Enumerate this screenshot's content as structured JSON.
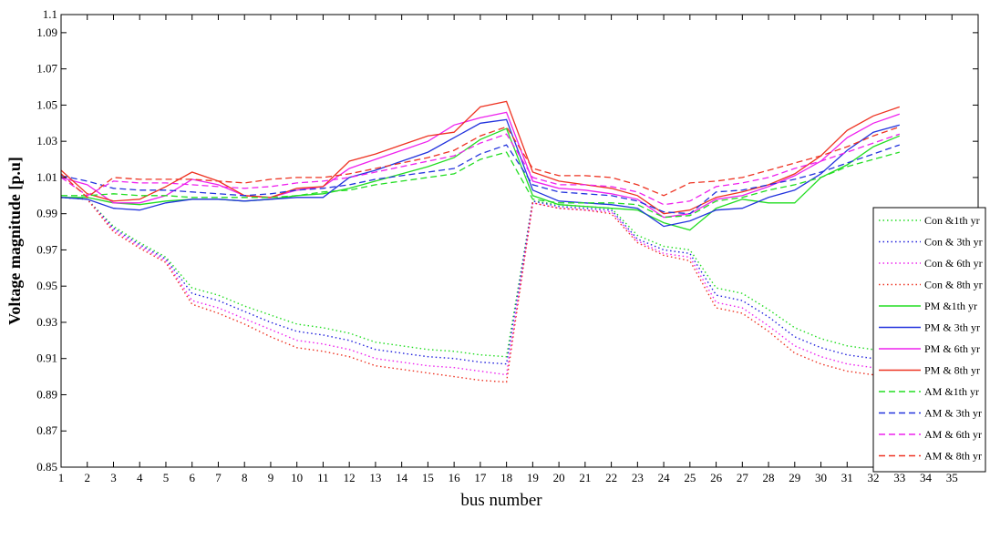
{
  "chart_data": {
    "type": "line",
    "title": "",
    "xlabel": "bus number",
    "ylabel": "Voltage magnitude [p.u]",
    "xlim": [
      1,
      36
    ],
    "ylim": [
      0.85,
      1.1
    ],
    "x_ticks": [
      "1",
      "2",
      "3",
      "4",
      "5",
      "6",
      "7",
      "8",
      "9",
      "10",
      "11",
      "12",
      "13",
      "14",
      "15",
      "16",
      "17",
      "18",
      "19",
      "20",
      "21",
      "22",
      "23",
      "24",
      "25",
      "26",
      "27",
      "28",
      "29",
      "30",
      "31",
      "32",
      "33",
      "34",
      "35"
    ],
    "y_ticks": [
      "0.85",
      "0.87",
      "0.89",
      "0.91",
      "0.93",
      "0.95",
      "0.97",
      "0.99",
      "1.01",
      "1.03",
      "1.05",
      "1.07",
      "1.09",
      "1.1"
    ],
    "grid": false,
    "legend_position": "bottom-right",
    "x": [
      1,
      2,
      3,
      4,
      5,
      6,
      7,
      8,
      9,
      10,
      11,
      12,
      13,
      14,
      15,
      16,
      17,
      18,
      19,
      20,
      21,
      22,
      23,
      24,
      25,
      26,
      27,
      28,
      29,
      30,
      31,
      32,
      33
    ],
    "series": [
      {
        "name": "Con &1th yr",
        "color": "#22dd22",
        "style": "dotted",
        "values": [
          0.999,
          0.998,
          0.983,
          0.974,
          0.966,
          0.949,
          0.945,
          0.939,
          0.934,
          0.929,
          0.927,
          0.924,
          0.919,
          0.917,
          0.915,
          0.914,
          0.912,
          0.911,
          0.997,
          0.995,
          0.994,
          0.993,
          0.978,
          0.972,
          0.97,
          0.949,
          0.946,
          0.937,
          0.927,
          0.921,
          0.917,
          0.915,
          0.915
        ]
      },
      {
        "name": "Con & 3th yr",
        "color": "#2222dd",
        "style": "dotted",
        "values": [
          0.999,
          0.998,
          0.982,
          0.973,
          0.965,
          0.946,
          0.942,
          0.936,
          0.93,
          0.925,
          0.923,
          0.92,
          0.915,
          0.913,
          0.911,
          0.91,
          0.908,
          0.907,
          0.997,
          0.994,
          0.993,
          0.992,
          0.976,
          0.97,
          0.968,
          0.945,
          0.942,
          0.933,
          0.922,
          0.916,
          0.912,
          0.91,
          0.91
        ]
      },
      {
        "name": "Con & 6th yr",
        "color": "#ee22ee",
        "style": "dotted",
        "values": [
          0.999,
          0.998,
          0.981,
          0.972,
          0.964,
          0.942,
          0.938,
          0.932,
          0.926,
          0.92,
          0.918,
          0.915,
          0.91,
          0.908,
          0.906,
          0.905,
          0.903,
          0.901,
          0.996,
          0.993,
          0.992,
          0.991,
          0.975,
          0.968,
          0.966,
          0.941,
          0.938,
          0.928,
          0.917,
          0.911,
          0.907,
          0.905,
          0.905
        ]
      },
      {
        "name": "Con & 8th yr",
        "color": "#ee3322",
        "style": "dotted",
        "values": [
          0.999,
          0.998,
          0.98,
          0.971,
          0.963,
          0.94,
          0.935,
          0.929,
          0.922,
          0.916,
          0.914,
          0.911,
          0.906,
          0.904,
          0.902,
          0.9,
          0.898,
          0.897,
          0.996,
          0.993,
          0.992,
          0.99,
          0.974,
          0.967,
          0.964,
          0.938,
          0.935,
          0.925,
          0.913,
          0.907,
          0.903,
          0.901,
          0.901
        ]
      },
      {
        "name": "PM &1th yr",
        "color": "#22dd22",
        "style": "solid",
        "values": [
          0.999,
          0.999,
          0.996,
          0.995,
          0.997,
          0.998,
          0.998,
          0.997,
          0.998,
          1.0,
          1.001,
          1.004,
          1.008,
          1.012,
          1.016,
          1.021,
          1.031,
          1.037,
          1.0,
          0.995,
          0.994,
          0.993,
          0.992,
          0.985,
          0.981,
          0.993,
          0.998,
          0.996,
          0.996,
          1.01,
          1.017,
          1.027,
          1.033
        ]
      },
      {
        "name": "PM & 3th yr",
        "color": "#2233dd",
        "style": "solid",
        "values": [
          0.999,
          0.998,
          0.993,
          0.992,
          0.996,
          0.998,
          0.998,
          0.997,
          0.998,
          0.999,
          0.999,
          1.01,
          1.014,
          1.019,
          1.024,
          1.032,
          1.04,
          1.042,
          1.003,
          0.997,
          0.996,
          0.995,
          0.993,
          0.983,
          0.986,
          0.992,
          0.993,
          0.999,
          1.003,
          1.012,
          1.025,
          1.035,
          1.039
        ]
      },
      {
        "name": "PM & 6th yr",
        "color": "#ee22ee",
        "style": "solid",
        "values": [
          1.01,
          1.006,
          0.996,
          0.996,
          1.0,
          1.009,
          1.006,
          1.0,
          0.999,
          1.003,
          1.005,
          1.015,
          1.02,
          1.025,
          1.03,
          1.039,
          1.043,
          1.046,
          1.008,
          1.004,
          1.003,
          1.001,
          0.998,
          0.988,
          0.99,
          0.998,
          1.0,
          1.005,
          1.011,
          1.019,
          1.032,
          1.04,
          1.045
        ]
      },
      {
        "name": "PM & 8th yr",
        "color": "#ee3322",
        "style": "solid",
        "values": [
          1.014,
          1.001,
          0.997,
          0.998,
          1.005,
          1.013,
          1.008,
          1.0,
          0.999,
          1.004,
          1.005,
          1.019,
          1.023,
          1.028,
          1.033,
          1.035,
          1.049,
          1.052,
          1.013,
          1.008,
          1.006,
          1.004,
          1.0,
          0.99,
          0.992,
          0.999,
          1.002,
          1.006,
          1.012,
          1.022,
          1.036,
          1.044,
          1.049
        ]
      },
      {
        "name": "AM &1th yr",
        "color": "#22dd22",
        "style": "dashed",
        "values": [
          1.0,
          1.0,
          1.001,
          1.0,
          1.0,
          0.999,
          0.999,
          0.999,
          0.999,
          1.0,
          1.002,
          1.003,
          1.006,
          1.008,
          1.01,
          1.012,
          1.02,
          1.024,
          0.998,
          0.996,
          0.996,
          0.996,
          0.995,
          0.988,
          0.989,
          0.997,
          0.999,
          1.003,
          1.006,
          1.01,
          1.016,
          1.02,
          1.024
        ]
      },
      {
        "name": "AM & 3th yr",
        "color": "#2233dd",
        "style": "dashed",
        "values": [
          1.011,
          1.008,
          1.004,
          1.003,
          1.003,
          1.002,
          1.001,
          1.0,
          1.001,
          1.003,
          1.004,
          1.006,
          1.009,
          1.011,
          1.013,
          1.015,
          1.023,
          1.028,
          1.006,
          1.002,
          1.001,
          1.0,
          0.997,
          0.991,
          0.99,
          1.002,
          1.003,
          1.006,
          1.009,
          1.013,
          1.018,
          1.023,
          1.028
        ]
      },
      {
        "name": "AM & 6th yr",
        "color": "#ee22ee",
        "style": "dashed",
        "values": [
          1.01,
          1.0,
          1.008,
          1.007,
          1.007,
          1.006,
          1.005,
          1.004,
          1.005,
          1.007,
          1.008,
          1.01,
          1.013,
          1.016,
          1.019,
          1.022,
          1.029,
          1.034,
          1.01,
          1.006,
          1.006,
          1.005,
          1.002,
          0.995,
          0.997,
          1.005,
          1.007,
          1.01,
          1.015,
          1.019,
          1.024,
          1.029,
          1.034
        ]
      },
      {
        "name": "AM & 8th yr",
        "color": "#ee3322",
        "style": "dashed",
        "values": [
          1.012,
          0.999,
          1.01,
          1.009,
          1.009,
          1.009,
          1.008,
          1.007,
          1.009,
          1.01,
          1.01,
          1.012,
          1.015,
          1.018,
          1.021,
          1.025,
          1.033,
          1.038,
          1.015,
          1.011,
          1.011,
          1.01,
          1.006,
          1.0,
          1.007,
          1.008,
          1.01,
          1.014,
          1.018,
          1.022,
          1.027,
          1.033,
          1.038
        ]
      }
    ]
  }
}
